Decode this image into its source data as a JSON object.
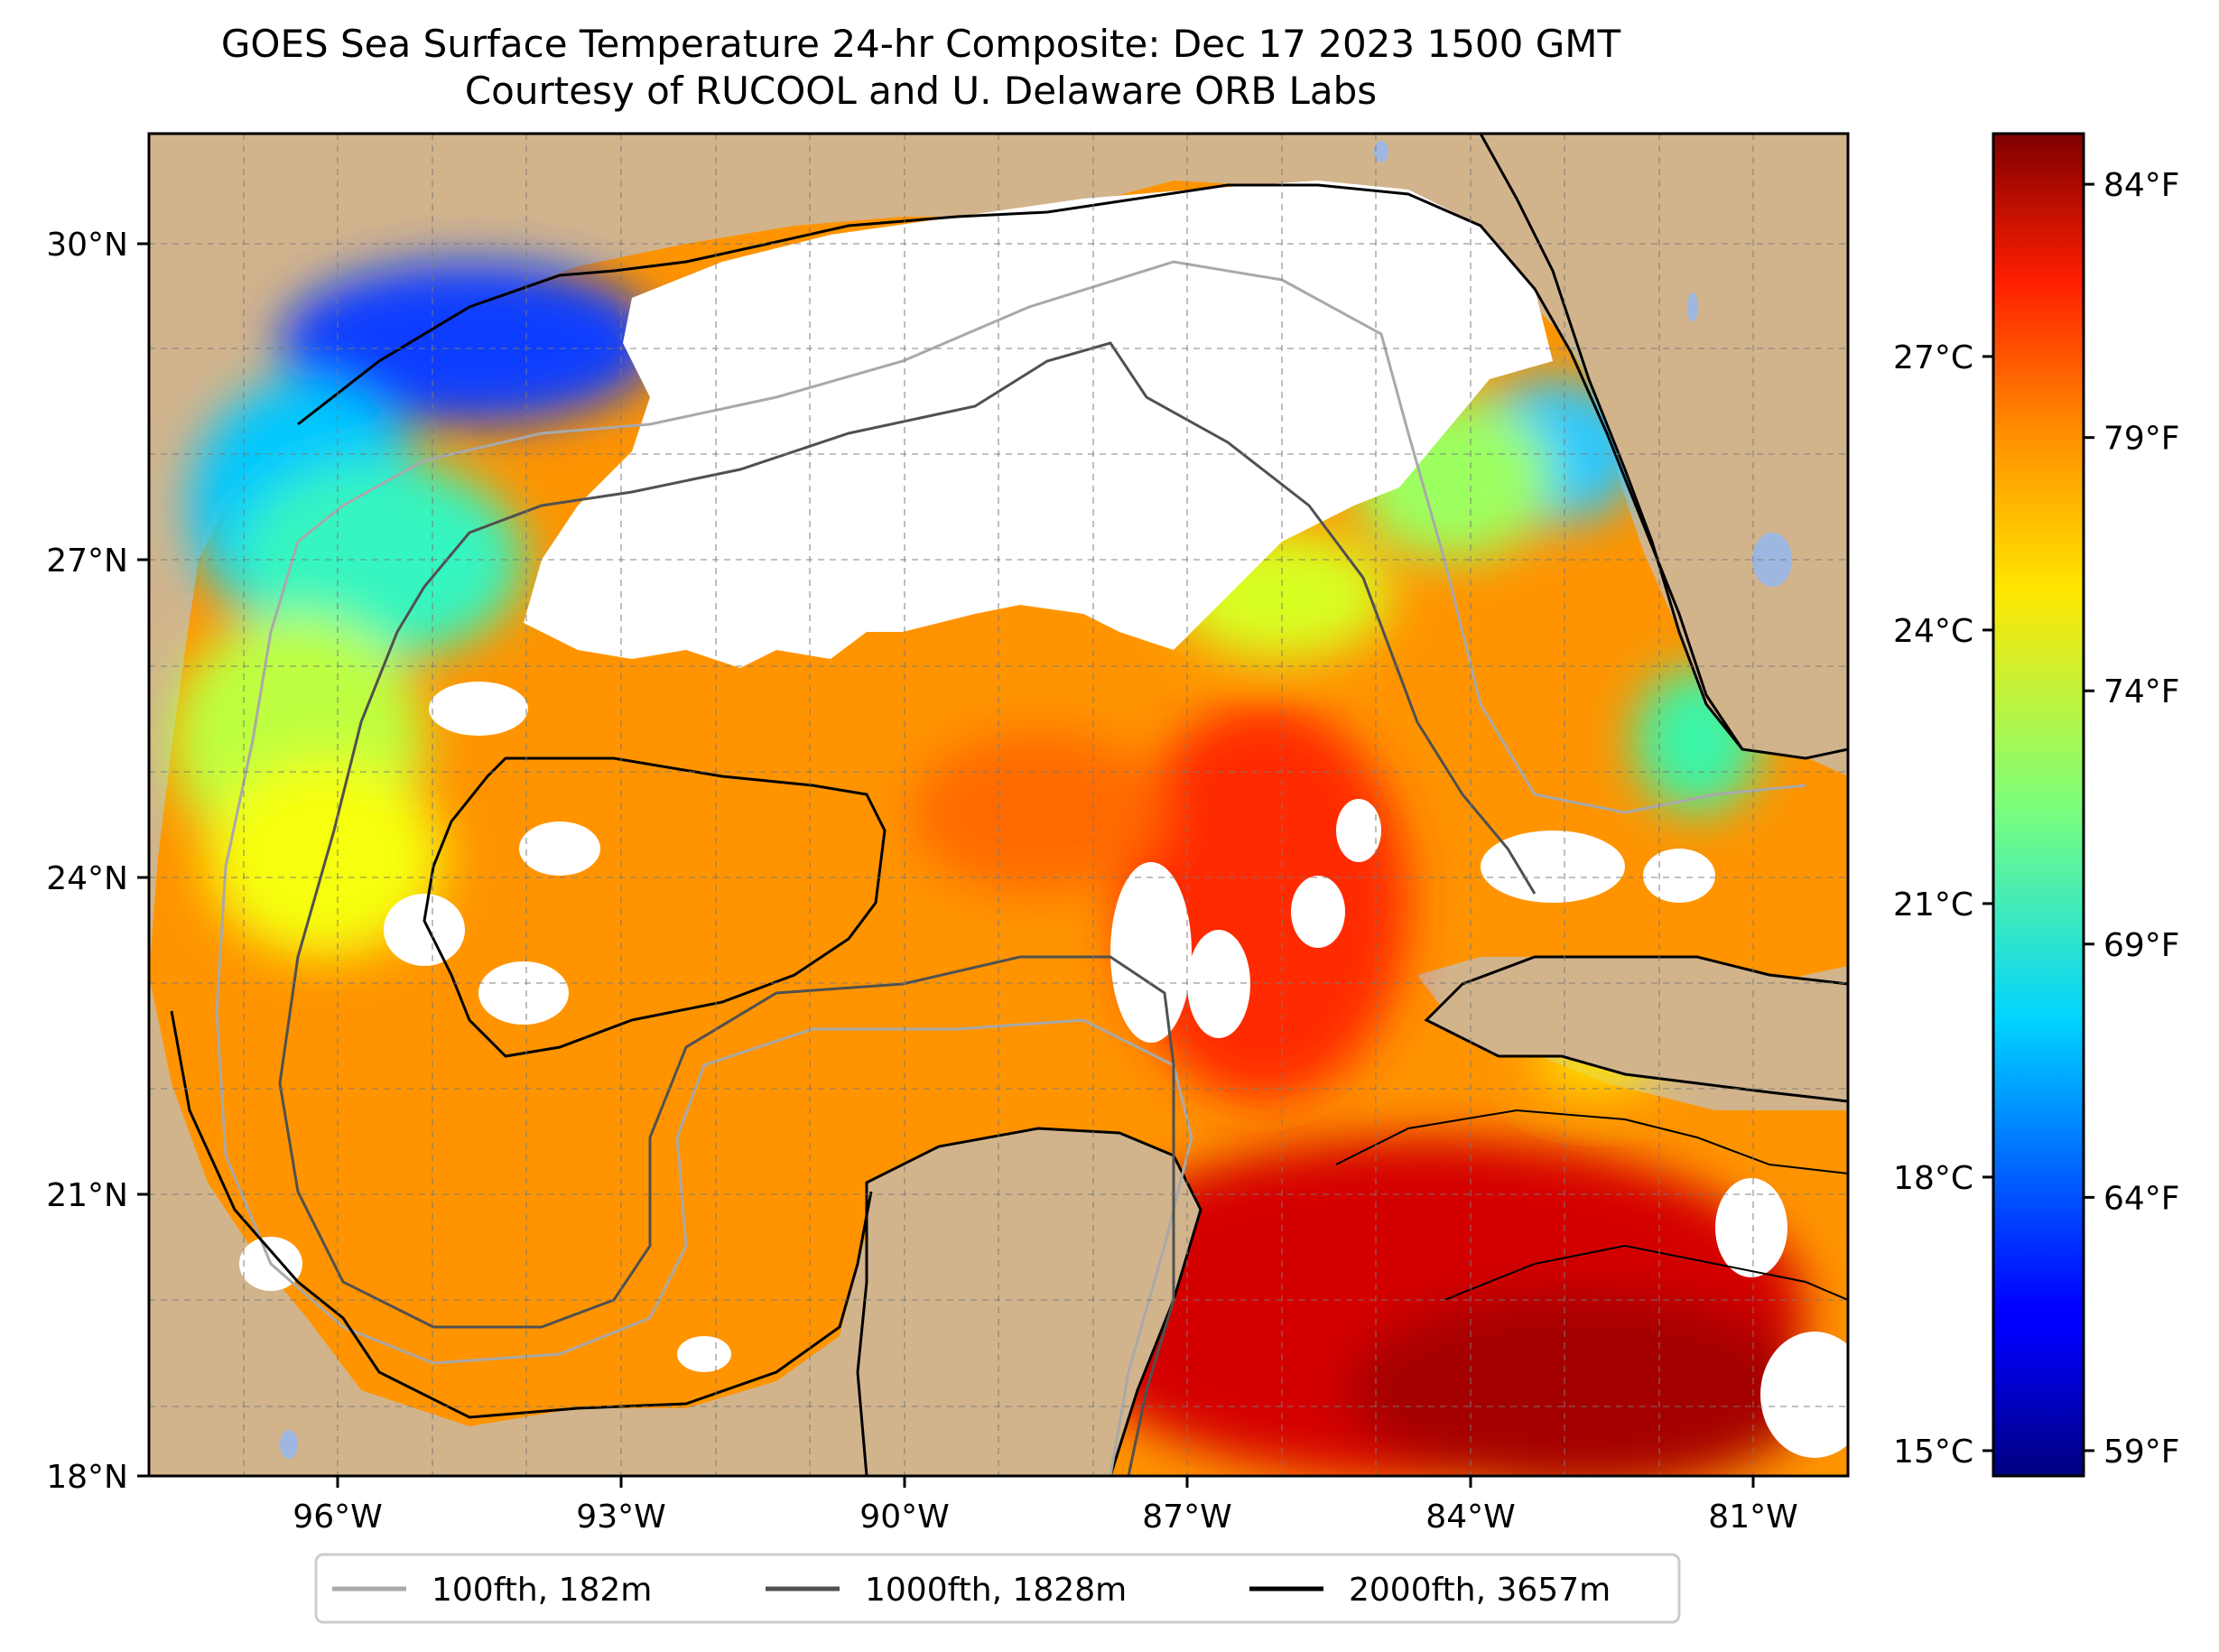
{
  "title_line1": "GOES Sea Surface Temperature 24-hr Composite: Dec 17 2023 1500 GMT",
  "title_line2": "Courtesy of RUCOOL and U. Delaware ORB Labs",
  "map": {
    "lon_range": [
      -98,
      -80
    ],
    "lat_range": [
      18,
      31
    ],
    "lon_ticks": [
      {
        "lon": -96,
        "label": "96°W"
      },
      {
        "lon": -93,
        "label": "93°W"
      },
      {
        "lon": -90,
        "label": "90°W"
      },
      {
        "lon": -87,
        "label": "87°W"
      },
      {
        "lon": -84,
        "label": "84°W"
      },
      {
        "lon": -81,
        "label": "81°W"
      }
    ],
    "lat_ticks": [
      {
        "lat": 30,
        "label": "30°N"
      },
      {
        "lat": 27,
        "label": "27°N"
      },
      {
        "lat": 24,
        "label": "24°N"
      },
      {
        "lat": 21,
        "label": "21°N"
      },
      {
        "lat": 18,
        "label": "18°N"
      }
    ],
    "land_color": "#d2b48c",
    "cloud_color": "#ffffff",
    "lake_color": "#9db7e0",
    "gridlines": "dashed gray"
  },
  "colorbar": {
    "colormap": "jet",
    "range_f": [
      58.5,
      85
    ],
    "fahrenheit_ticks": [
      {
        "value": 84,
        "label": "84°F"
      },
      {
        "value": 79,
        "label": "79°F"
      },
      {
        "value": 74,
        "label": "74°F"
      },
      {
        "value": 69,
        "label": "69°F"
      },
      {
        "value": 64,
        "label": "64°F"
      },
      {
        "value": 59,
        "label": "59°F"
      }
    ],
    "celsius_ticks": [
      {
        "value": 27,
        "label": "27°C"
      },
      {
        "value": 24,
        "label": "24°C"
      },
      {
        "value": 21,
        "label": "21°C"
      },
      {
        "value": 18,
        "label": "18°C"
      },
      {
        "value": 15,
        "label": "15°C"
      }
    ]
  },
  "legend": {
    "items": [
      {
        "label": "100fth, 182m",
        "color": "#a9a9a9"
      },
      {
        "label": "1000fth, 1828m",
        "color": "#505050"
      },
      {
        "label": "2000fth, 3657m",
        "color": "#000000"
      }
    ]
  }
}
